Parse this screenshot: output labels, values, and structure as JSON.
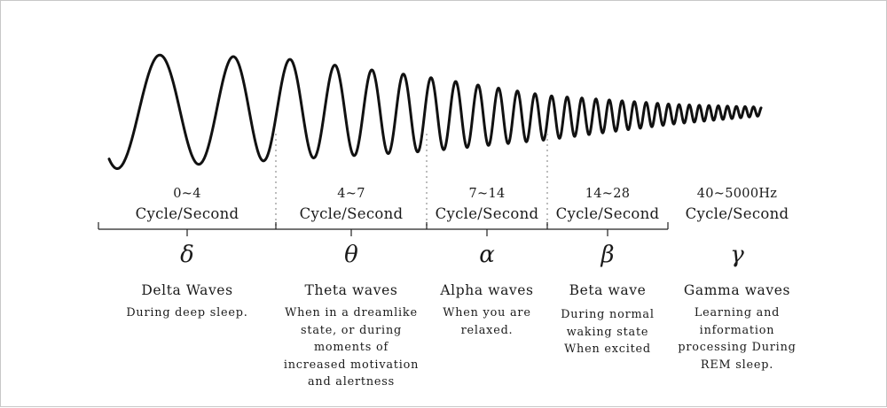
{
  "bands": [
    {
      "range": "0~4",
      "unit": "Cycle/Second",
      "symbol": "δ",
      "name": "Delta Waves",
      "description": "During deep sleep."
    },
    {
      "range": "4~7",
      "unit": "Cycle/Second",
      "symbol": "θ",
      "name": "Theta waves",
      "description": "When in a dreamlike\nstate, or during\nmoments of\nincreased motivation\nand alertness"
    },
    {
      "range": "7~14",
      "unit": "Cycle/Second",
      "symbol": "α",
      "name": "Alpha waves",
      "description": "When you are\nrelaxed."
    },
    {
      "range": "14~28",
      "unit": "Cycle/Second",
      "symbol": "β",
      "name": "Beta wave",
      "description": "During normal\nwaking state\nWhen excited"
    },
    {
      "range": "40~5000Hz",
      "unit": "Cycle/Second",
      "symbol": "γ",
      "name": "Gamma waves",
      "description": "Learning and\ninformation\nprocessing During\nREM sleep."
    }
  ],
  "colors": {
    "wave": "#111111",
    "separator": "#bdbdbd",
    "bracket": "#222222",
    "text": "#1a1a1a"
  }
}
